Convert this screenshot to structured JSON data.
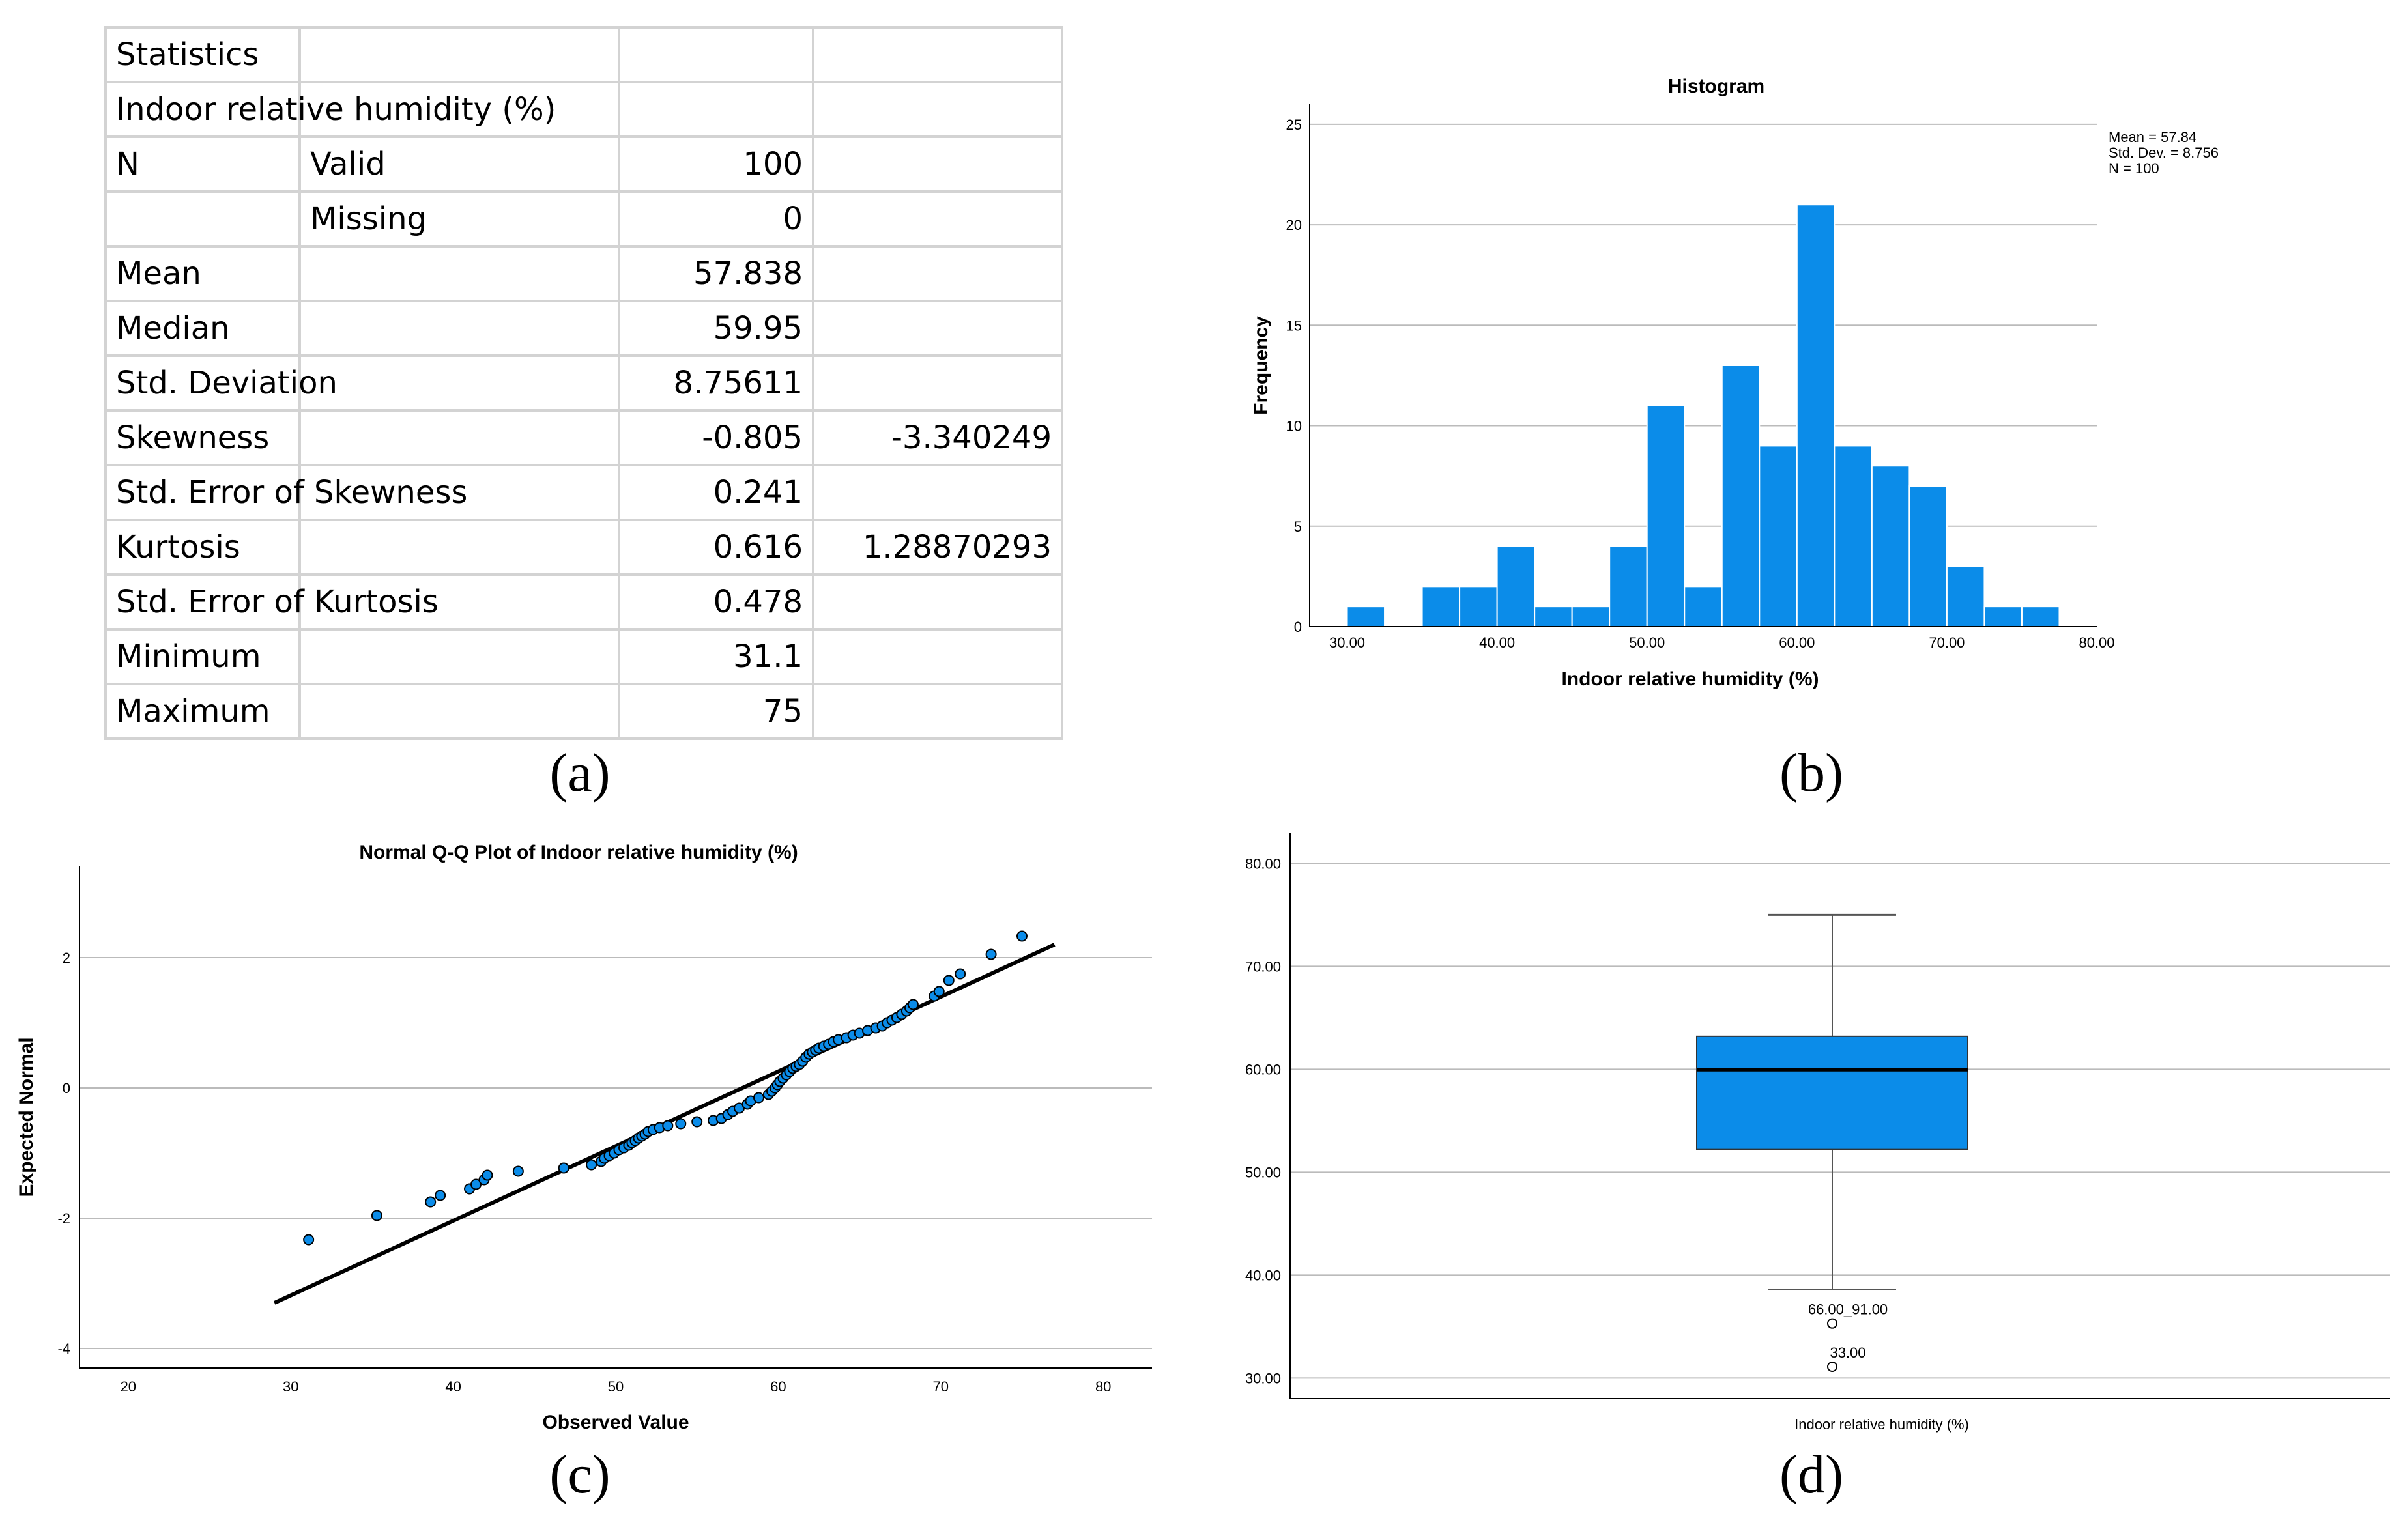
{
  "panel_labels": {
    "a": "(a)",
    "b": "(b)",
    "c": "(c)",
    "d": "(d)"
  },
  "table": {
    "rows": [
      [
        "Statistics",
        "",
        "",
        ""
      ],
      [
        "Indoor relative humidity (%)",
        "",
        "",
        ""
      ],
      [
        "N",
        "Valid",
        "100",
        ""
      ],
      [
        "",
        "Missing",
        "0",
        ""
      ],
      [
        "Mean",
        "",
        "57.838",
        ""
      ],
      [
        "Median",
        "",
        "59.95",
        ""
      ],
      [
        "Std. Deviation",
        "",
        "8.75611",
        ""
      ],
      [
        "Skewness",
        "",
        "-0.805",
        "-3.340249"
      ],
      [
        "Std. Error of Skewness",
        "",
        "0.241",
        ""
      ],
      [
        "Kurtosis",
        "",
        "0.616",
        "1.28870293"
      ],
      [
        "Std. Error of Kurtosis",
        "",
        "0.478",
        ""
      ],
      [
        "Minimum",
        "",
        "31.1",
        ""
      ],
      [
        "Maximum",
        "",
        "75",
        ""
      ]
    ]
  },
  "chart_data": [
    {
      "type": "bar",
      "id": "histogram",
      "title": "Histogram",
      "xlabel": "Indoor relative humidity (%)",
      "ylabel": "Frequency",
      "xlim": [
        27.5,
        80
      ],
      "ylim": [
        0,
        26
      ],
      "xticks": [
        "30.00",
        "40.00",
        "50.00",
        "60.00",
        "70.00",
        "80.00"
      ],
      "xtick_values": [
        30,
        40,
        50,
        60,
        70,
        80
      ],
      "yticks": [
        "0",
        "5",
        "10",
        "15",
        "20",
        "25"
      ],
      "ytick_values": [
        0,
        5,
        10,
        15,
        20,
        25
      ],
      "bin_width": 2.5,
      "bin_starts": [
        30,
        32.5,
        35,
        37.5,
        40,
        42.5,
        45,
        47.5,
        50,
        52.5,
        55,
        57.5,
        60,
        62.5,
        65,
        67.5,
        70,
        72.5,
        75
      ],
      "values": [
        1,
        0,
        2,
        2,
        4,
        1,
        1,
        4,
        11,
        2,
        13,
        9,
        21,
        9,
        8,
        7,
        3,
        1,
        1
      ],
      "color": "#0b8ce9",
      "legend": [
        "Mean = 57.84",
        "Std. Dev. = 8.756",
        "N = 100"
      ]
    },
    {
      "type": "scatter",
      "id": "qq-plot",
      "title": "Normal Q-Q Plot of Indoor relative humidity (%)",
      "xlabel": "Observed Value",
      "ylabel": "Expected Normal",
      "xlim": [
        17,
        83
      ],
      "ylim": [
        -4.3,
        3.4
      ],
      "xticks": [
        "20",
        "30",
        "40",
        "50",
        "60",
        "70",
        "80"
      ],
      "xtick_values": [
        20,
        30,
        40,
        50,
        60,
        70,
        80
      ],
      "yticks": [
        "-4",
        "-2",
        "0",
        "2"
      ],
      "ytick_values": [
        -4,
        -2,
        0,
        2
      ],
      "reference_line": {
        "x": [
          29,
          77
        ],
        "y": [
          -3.3,
          2.2
        ]
      },
      "points": {
        "x": [
          31.1,
          35.3,
          38.6,
          39.2,
          41.0,
          41.4,
          41.9,
          42.1,
          44.0,
          46.8,
          48.5,
          49.1,
          49.3,
          49.6,
          49.9,
          50.2,
          50.5,
          50.8,
          51.0,
          51.2,
          51.4,
          51.6,
          51.8,
          52.0,
          52.3,
          52.7,
          53.2,
          54.0,
          55.0,
          56.0,
          56.5,
          56.9,
          57.2,
          57.6,
          58.1,
          58.3,
          58.8,
          59.4,
          59.6,
          59.8,
          59.95,
          60.1,
          60.3,
          60.5,
          60.7,
          60.9,
          61.1,
          61.3,
          61.5,
          61.7,
          61.9,
          62.1,
          62.3,
          62.5,
          62.8,
          63.1,
          63.4,
          63.7,
          64.2,
          64.6,
          65.0,
          65.5,
          66.0,
          66.4,
          66.7,
          67.0,
          67.3,
          67.6,
          67.9,
          68.1,
          68.3,
          69.6,
          69.9,
          70.5,
          71.2,
          73.1,
          75.0
        ],
        "y": [
          -2.33,
          -1.96,
          -1.75,
          -1.65,
          -1.55,
          -1.48,
          -1.41,
          -1.34,
          -1.28,
          -1.23,
          -1.18,
          -1.13,
          -1.08,
          -1.04,
          -1.0,
          -0.95,
          -0.92,
          -0.88,
          -0.84,
          -0.81,
          -0.77,
          -0.74,
          -0.71,
          -0.67,
          -0.64,
          -0.61,
          -0.58,
          -0.55,
          -0.52,
          -0.5,
          -0.47,
          -0.41,
          -0.36,
          -0.31,
          -0.25,
          -0.2,
          -0.15,
          -0.1,
          -0.05,
          0.0,
          0.05,
          0.1,
          0.15,
          0.2,
          0.25,
          0.3,
          0.33,
          0.36,
          0.41,
          0.47,
          0.52,
          0.55,
          0.58,
          0.61,
          0.64,
          0.67,
          0.71,
          0.74,
          0.77,
          0.81,
          0.84,
          0.88,
          0.92,
          0.95,
          1.0,
          1.04,
          1.08,
          1.13,
          1.18,
          1.23,
          1.28,
          1.41,
          1.48,
          1.65,
          1.75,
          2.05,
          2.33
        ]
      },
      "color": "#0b8ce9"
    },
    {
      "type": "box",
      "id": "box-plot",
      "category": "Indoor relative humidity (%)",
      "ylim": [
        28,
        83
      ],
      "yticks": [
        "30.00",
        "40.00",
        "50.00",
        "60.00",
        "70.00",
        "80.00"
      ],
      "ytick_values": [
        30,
        40,
        50,
        60,
        70,
        80
      ],
      "whisker_low": 38.6,
      "q1": 52.2,
      "median": 59.95,
      "q3": 63.2,
      "whisker_high": 75,
      "outliers": [
        {
          "value": 35.3,
          "label": "66.00_91.00"
        },
        {
          "value": 31.1,
          "label": "33.00"
        }
      ],
      "color": "#0b8ce9"
    }
  ]
}
